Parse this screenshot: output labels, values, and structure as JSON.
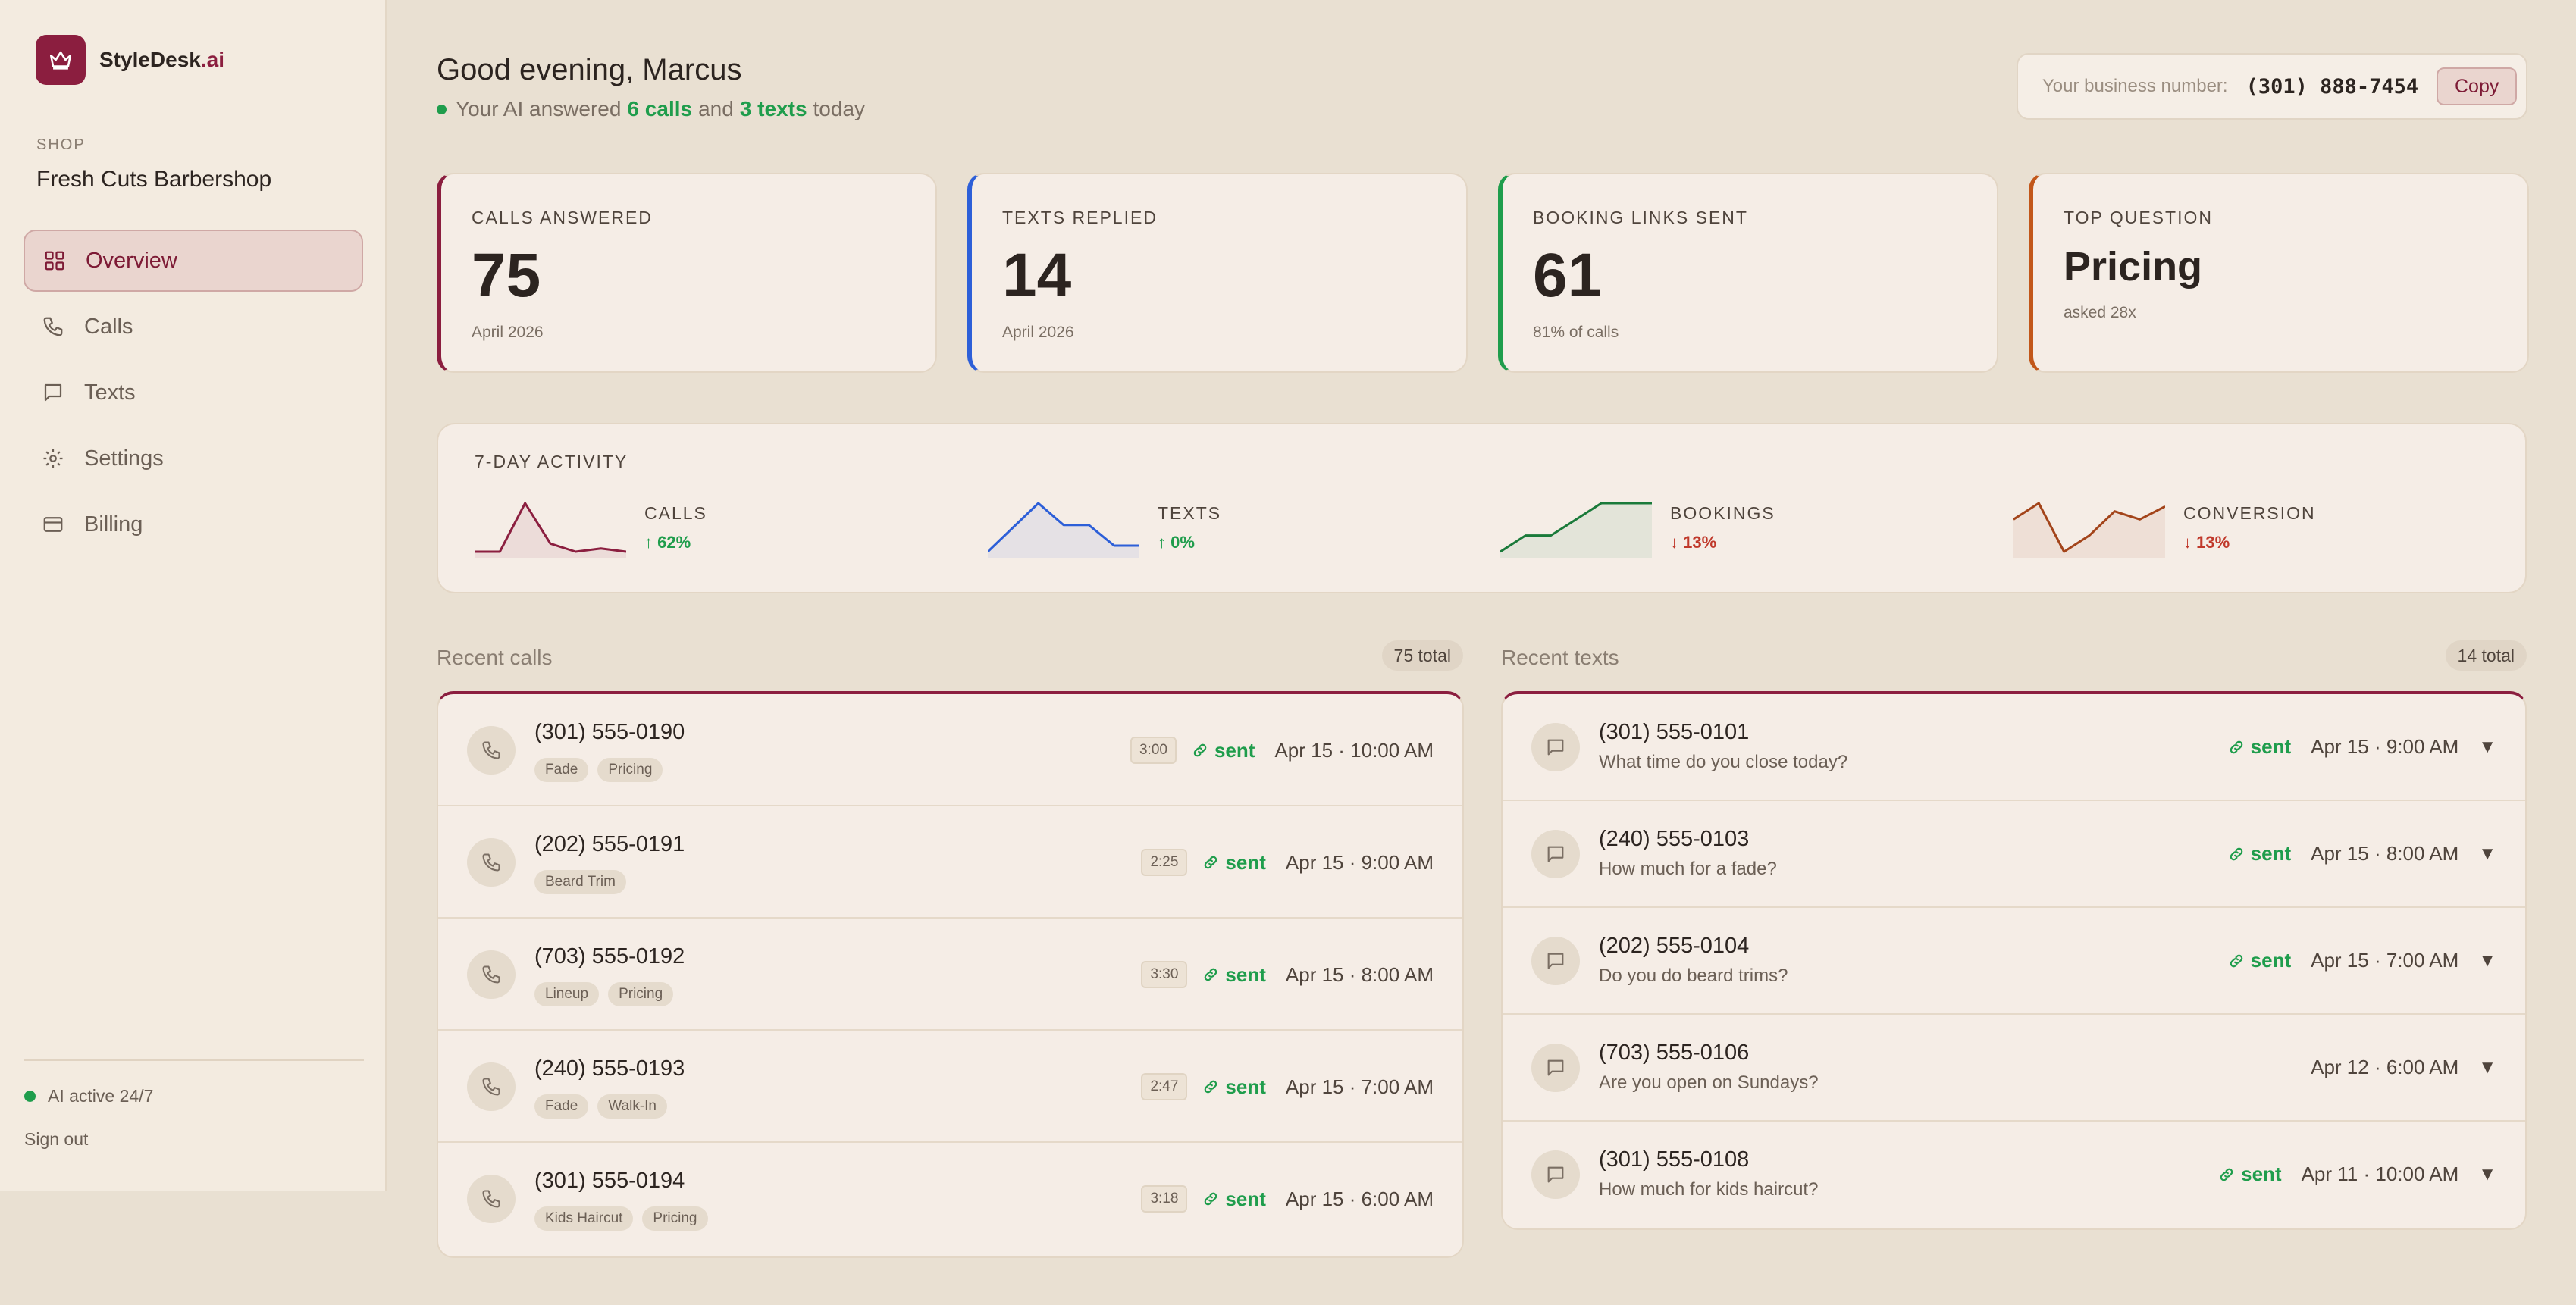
{
  "app": {
    "name": "StyleDesk",
    "suffix": ".ai"
  },
  "sidebar": {
    "shop_label": "SHOP",
    "shop_name": "Fresh Cuts Barbershop",
    "nav": [
      {
        "label": "Overview",
        "icon": "grid-icon",
        "active": true
      },
      {
        "label": "Calls",
        "icon": "phone-icon"
      },
      {
        "label": "Texts",
        "icon": "message-icon"
      },
      {
        "label": "Settings",
        "icon": "gear-icon"
      },
      {
        "label": "Billing",
        "icon": "card-icon"
      }
    ],
    "status": "AI active 24/7",
    "signout": "Sign out"
  },
  "header": {
    "greeting": "Good evening, Marcus",
    "sub_prefix": "Your AI answered",
    "calls": "6 calls",
    "and": "and",
    "texts": "3 texts",
    "sub_suffix": "today",
    "biz_label": "Your business number:",
    "biz_number": "(301) 888-7454",
    "copy": "Copy"
  },
  "stats": [
    {
      "label": "CALLS ANSWERED",
      "value": "75",
      "sub": "April 2026",
      "color": "#8b1e3f"
    },
    {
      "label": "TEXTS REPLIED",
      "value": "14",
      "sub": "April 2026",
      "color": "#2d5fd8"
    },
    {
      "label": "BOOKING LINKS SENT",
      "value": "61",
      "sub": "81% of calls",
      "color": "#1f9d4c"
    },
    {
      "label": "TOP QUESTION",
      "value": "Pricing",
      "sub": "asked 28x",
      "color": "#c2571a"
    }
  ],
  "activity": {
    "title": "7-DAY ACTIVITY",
    "items": [
      {
        "label": "CALLS",
        "delta": "↑ 62%",
        "dir": "up",
        "color": "#8b1e3f",
        "values": [
          1,
          1,
          4,
          1.5,
          1,
          1.2,
          1
        ]
      },
      {
        "label": "TEXTS",
        "delta": "↑ 0%",
        "dir": "up",
        "color": "#2d5fd8",
        "values": [
          0,
          2,
          4,
          2.2,
          2.2,
          0.5,
          0.5
        ]
      },
      {
        "label": "BOOKINGS",
        "delta": "↓ 13%",
        "dir": "down",
        "color": "#1a7a3a",
        "values": [
          1,
          2,
          2,
          3,
          4,
          4,
          4
        ]
      },
      {
        "label": "CONVERSION",
        "delta": "↓ 13%",
        "dir": "down",
        "color": "#a3441a",
        "values": [
          3,
          4,
          1,
          2,
          3.5,
          3,
          3.8
        ]
      }
    ]
  },
  "recent_calls": {
    "title": "Recent calls",
    "total": "75 total",
    "rows": [
      {
        "phone": "(301) 555-0190",
        "tags": [
          "Fade",
          "Pricing"
        ],
        "duration": "3:00",
        "sent": "sent",
        "time": "Apr 15 · 10:00 AM"
      },
      {
        "phone": "(202) 555-0191",
        "tags": [
          "Beard Trim"
        ],
        "duration": "2:25",
        "sent": "sent",
        "time": "Apr 15 · 9:00 AM"
      },
      {
        "phone": "(703) 555-0192",
        "tags": [
          "Lineup",
          "Pricing"
        ],
        "duration": "3:30",
        "sent": "sent",
        "time": "Apr 15 · 8:00 AM"
      },
      {
        "phone": "(240) 555-0193",
        "tags": [
          "Fade",
          "Walk-In"
        ],
        "duration": "2:47",
        "sent": "sent",
        "time": "Apr 15 · 7:00 AM"
      },
      {
        "phone": "(301) 555-0194",
        "tags": [
          "Kids Haircut",
          "Pricing"
        ],
        "duration": "3:18",
        "sent": "sent",
        "time": "Apr 15 · 6:00 AM"
      }
    ]
  },
  "recent_texts": {
    "title": "Recent texts",
    "total": "14 total",
    "rows": [
      {
        "phone": "(301) 555-0101",
        "message": "What time do you close today?",
        "sent": "sent",
        "time": "Apr 15 · 9:00 AM"
      },
      {
        "phone": "(240) 555-0103",
        "message": "How much for a fade?",
        "sent": "sent",
        "time": "Apr 15 · 8:00 AM"
      },
      {
        "phone": "(202) 555-0104",
        "message": "Do you do beard trims?",
        "sent": "sent",
        "time": "Apr 15 · 7:00 AM"
      },
      {
        "phone": "(703) 555-0106",
        "message": "Are you open on Sundays?",
        "sent": "",
        "time": "Apr 12 · 6:00 AM"
      },
      {
        "phone": "(301) 555-0108",
        "message": "How much for kids haircut?",
        "sent": "sent",
        "time": "Apr 11 · 10:00 AM"
      }
    ]
  }
}
